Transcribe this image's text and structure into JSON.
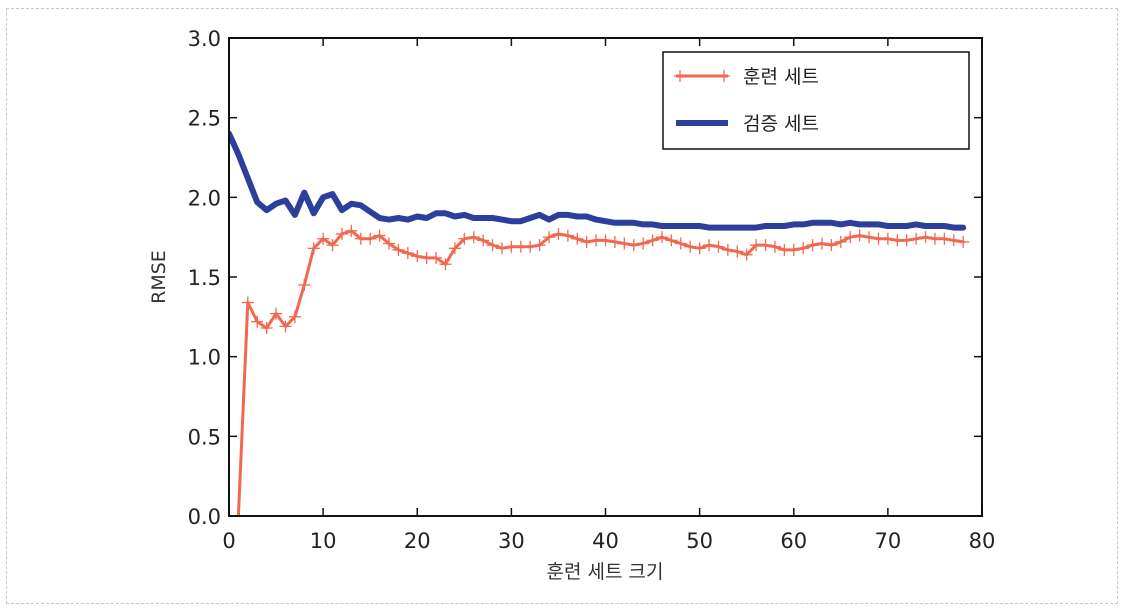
{
  "chart_data": {
    "type": "line",
    "xlabel": "훈련 세트 크기",
    "ylabel": "RMSE",
    "xlim": [
      0,
      80
    ],
    "ylim": [
      0.0,
      3.0
    ],
    "xticks": [
      "0",
      "10",
      "20",
      "30",
      "40",
      "50",
      "60",
      "70",
      "80"
    ],
    "yticks": [
      "0.0",
      "0.5",
      "1.0",
      "1.5",
      "2.0",
      "2.5",
      "3.0"
    ],
    "legend_position": "top-right",
    "series": [
      {
        "name": "훈련 세트",
        "color": "#f2684f",
        "marker": "+",
        "x": [
          1,
          2,
          3,
          4,
          5,
          6,
          7,
          8,
          9,
          10,
          11,
          12,
          13,
          14,
          15,
          16,
          17,
          18,
          19,
          20,
          21,
          22,
          23,
          24,
          25,
          26,
          27,
          28,
          29,
          30,
          31,
          32,
          33,
          34,
          35,
          36,
          37,
          38,
          39,
          40,
          41,
          42,
          43,
          44,
          45,
          46,
          47,
          48,
          49,
          50,
          51,
          52,
          53,
          54,
          55,
          56,
          57,
          58,
          59,
          60,
          61,
          62,
          63,
          64,
          65,
          66,
          67,
          68,
          69,
          70,
          71,
          72,
          73,
          74,
          75,
          76,
          77,
          78
        ],
        "values": [
          0.0,
          1.34,
          1.22,
          1.18,
          1.27,
          1.19,
          1.25,
          1.45,
          1.68,
          1.74,
          1.7,
          1.77,
          1.79,
          1.74,
          1.74,
          1.76,
          1.71,
          1.67,
          1.65,
          1.63,
          1.62,
          1.62,
          1.58,
          1.68,
          1.74,
          1.75,
          1.73,
          1.7,
          1.68,
          1.69,
          1.69,
          1.69,
          1.7,
          1.75,
          1.77,
          1.76,
          1.74,
          1.72,
          1.73,
          1.73,
          1.72,
          1.71,
          1.7,
          1.71,
          1.73,
          1.75,
          1.73,
          1.71,
          1.69,
          1.68,
          1.7,
          1.69,
          1.67,
          1.66,
          1.64,
          1.7,
          1.7,
          1.69,
          1.67,
          1.67,
          1.68,
          1.7,
          1.71,
          1.7,
          1.72,
          1.75,
          1.76,
          1.75,
          1.74,
          1.74,
          1.73,
          1.73,
          1.74,
          1.75,
          1.74,
          1.74,
          1.73,
          1.72
        ]
      },
      {
        "name": "검증 세트",
        "color": "#2c3f9b",
        "marker": "none",
        "x": [
          0,
          1,
          2,
          3,
          4,
          5,
          6,
          7,
          8,
          9,
          10,
          11,
          12,
          13,
          14,
          15,
          16,
          17,
          18,
          19,
          20,
          21,
          22,
          23,
          24,
          25,
          26,
          27,
          28,
          29,
          30,
          31,
          32,
          33,
          34,
          35,
          36,
          37,
          38,
          39,
          40,
          41,
          42,
          43,
          44,
          45,
          46,
          47,
          48,
          49,
          50,
          51,
          52,
          53,
          54,
          55,
          56,
          57,
          58,
          59,
          60,
          61,
          62,
          63,
          64,
          65,
          66,
          67,
          68,
          69,
          70,
          71,
          72,
          73,
          74,
          75,
          76,
          77,
          78
        ],
        "values": [
          2.4,
          2.27,
          2.12,
          1.97,
          1.92,
          1.96,
          1.98,
          1.89,
          2.03,
          1.9,
          2.0,
          2.02,
          1.92,
          1.96,
          1.95,
          1.91,
          1.87,
          1.86,
          1.87,
          1.86,
          1.88,
          1.87,
          1.9,
          1.9,
          1.88,
          1.89,
          1.87,
          1.87,
          1.87,
          1.86,
          1.85,
          1.85,
          1.87,
          1.89,
          1.86,
          1.89,
          1.89,
          1.88,
          1.88,
          1.86,
          1.85,
          1.84,
          1.84,
          1.84,
          1.83,
          1.83,
          1.82,
          1.82,
          1.82,
          1.82,
          1.82,
          1.81,
          1.81,
          1.81,
          1.81,
          1.81,
          1.81,
          1.82,
          1.82,
          1.82,
          1.83,
          1.83,
          1.84,
          1.84,
          1.84,
          1.83,
          1.84,
          1.83,
          1.83,
          1.83,
          1.82,
          1.82,
          1.82,
          1.83,
          1.82,
          1.82,
          1.82,
          1.81,
          1.81
        ]
      }
    ]
  }
}
